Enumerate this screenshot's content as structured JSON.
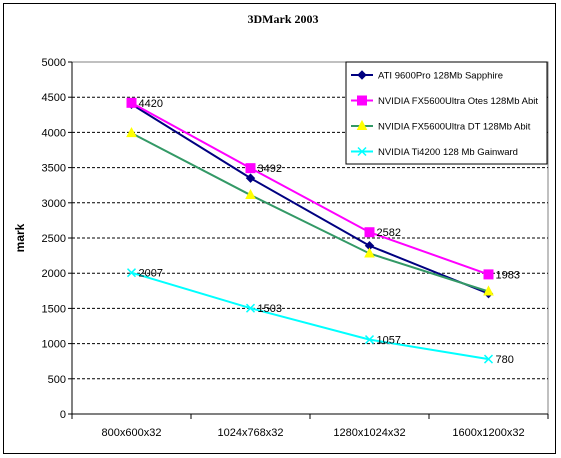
{
  "chart_data": {
    "type": "line",
    "title": "3DMark 2003",
    "xlabel": "",
    "ylabel": "mark",
    "categories": [
      "800x600x32",
      "1024x768x32",
      "1280x1024x32",
      "1600x1200x32"
    ],
    "ylim": [
      0,
      5000
    ],
    "yticks": [
      0,
      500,
      1000,
      1500,
      2000,
      2500,
      3000,
      3500,
      4000,
      4500,
      5000
    ],
    "grid": "horizontal dashed",
    "legend_position": "top-right",
    "series": [
      {
        "name": "ATI 9600Pro 128Mb Sapphire",
        "values": [
          4400,
          3350,
          2390,
          1710
        ],
        "color": "#000080",
        "marker": "diamond",
        "data_labels": false
      },
      {
        "name": "NVIDIA FX5600Ultra Otes 128Mb Abit",
        "values": [
          4420,
          3492,
          2582,
          1983
        ],
        "color": "#FF00FF",
        "marker": "square",
        "data_labels": true
      },
      {
        "name": "NVIDIA FX5600Ultra DT 128Mb Abit",
        "values": [
          3990,
          3110,
          2280,
          1740
        ],
        "color": "#339966",
        "marker_color": "#FFFF00",
        "marker": "triangle",
        "data_labels": false
      },
      {
        "name": "NVIDIA Ti4200 128 Mb Gainward",
        "values": [
          2007,
          1503,
          1057,
          780
        ],
        "color": "#00FFFF",
        "marker": "x",
        "data_labels": true
      }
    ]
  }
}
